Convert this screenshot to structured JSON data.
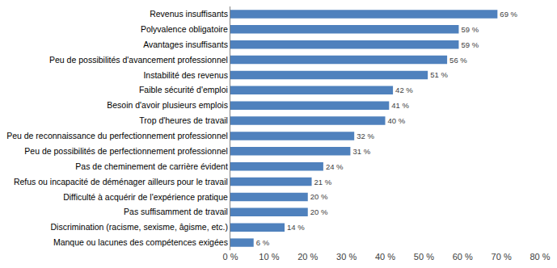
{
  "chart_data": {
    "type": "bar",
    "orientation": "horizontal",
    "categories": [
      "Revenus insuffisants",
      "Polyvalence obligatoire",
      "Avantages insuffisants",
      "Peu de possibilités d'avancement professionnel",
      "Instabilité des revenus",
      "Faible sécurité d'emploi",
      "Besoin d'avoir plusieurs emplois",
      "Trop d'heures de travail",
      "Peu de reconnaissance du perfectionnement professionnel",
      "Peu de possibilités de perfectionnement professionnel",
      "Pas de cheminement de carrière évident",
      "Refus ou incapacité de déménager ailleurs pour le travail",
      "Difficulté à acquérir de l'expérience pratique",
      "Pas suffisamment de travail",
      "Discrimination (racisme, sexisme, âgisme, etc.)",
      "Manque ou lacunes des compétences exigées"
    ],
    "values": [
      69,
      59,
      59,
      56,
      51,
      42,
      41,
      40,
      32,
      31,
      24,
      21,
      20,
      20,
      14,
      6
    ],
    "value_labels": [
      "69 %",
      "59 %",
      "59 %",
      "56 %",
      "51 %",
      "42 %",
      "41 %",
      "40 %",
      "32 %",
      "31 %",
      "24 %",
      "21 %",
      "20 %",
      "20 %",
      "14 %",
      "6 %"
    ],
    "data_labels": true,
    "color": "#4f81bd",
    "xlim": [
      0,
      80
    ],
    "xticks": [
      {
        "value": 0,
        "label": "0 %"
      },
      {
        "value": 10,
        "label": "10 %"
      },
      {
        "value": 20,
        "label": "20 %"
      },
      {
        "value": 30,
        "label": "30 %"
      },
      {
        "value": 40,
        "label": "40 %"
      },
      {
        "value": 50,
        "label": "50 %"
      },
      {
        "value": 60,
        "label": "60 %"
      },
      {
        "value": 70,
        "label": "70 %"
      },
      {
        "value": 80,
        "label": "80 %"
      }
    ],
    "grid": false
  }
}
